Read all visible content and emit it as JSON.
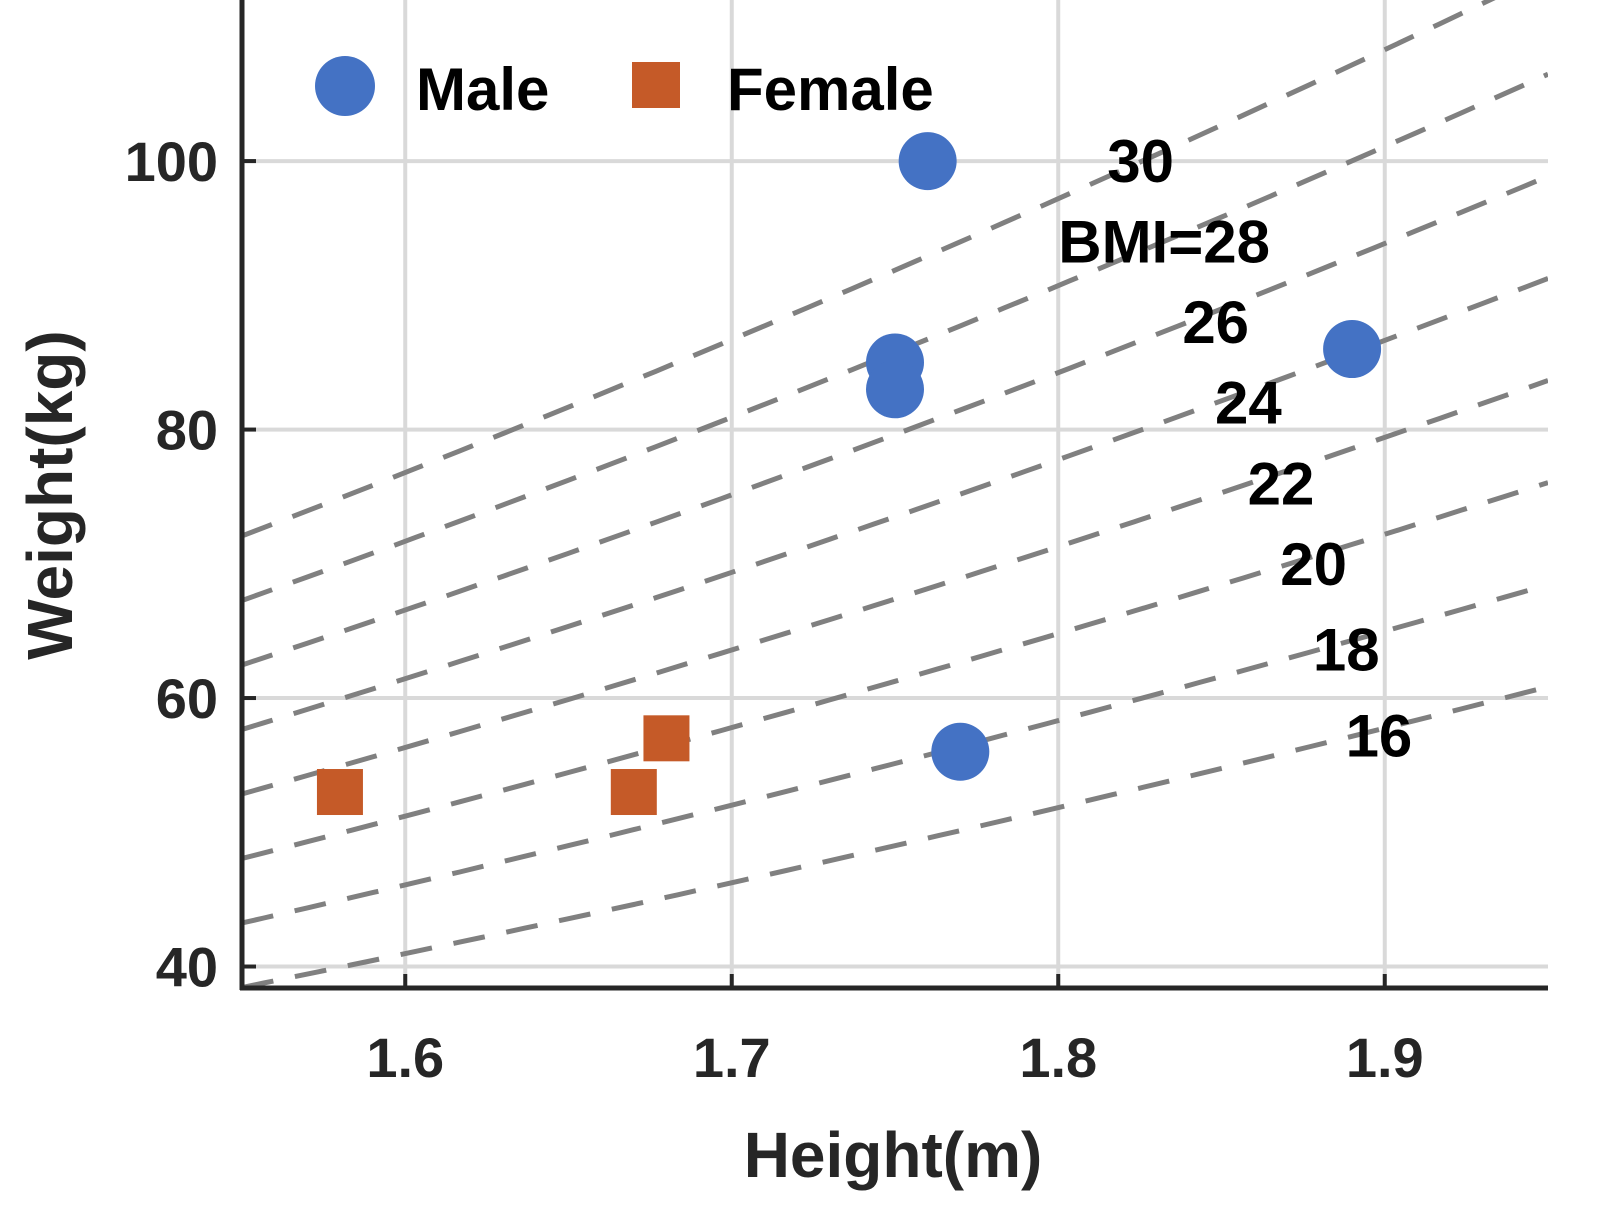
{
  "chart_data": {
    "type": "scatter",
    "xlabel": "Height(m)",
    "ylabel": "Weight(kg)",
    "xlim": [
      1.55,
      1.95
    ],
    "ylim": [
      38.4,
      112
    ],
    "x_ticks": [
      1.6,
      1.7,
      1.8,
      1.9
    ],
    "y_ticks": [
      40,
      60,
      80,
      100
    ],
    "x_tick_labels": [
      "1.6",
      "1.7",
      "1.8",
      "1.9"
    ],
    "y_tick_labels": [
      "40",
      "60",
      "80",
      "100"
    ],
    "grid": true,
    "legend": "top-left",
    "series": [
      {
        "name": "Male",
        "marker": "circle",
        "color": "#4472C4",
        "points": [
          {
            "x": 1.76,
            "y": 100
          },
          {
            "x": 1.75,
            "y": 85
          },
          {
            "x": 1.75,
            "y": 83
          },
          {
            "x": 1.89,
            "y": 86
          },
          {
            "x": 1.77,
            "y": 56
          }
        ]
      },
      {
        "name": "Female",
        "marker": "square",
        "color": "#C55A28",
        "points": [
          {
            "x": 1.58,
            "y": 53
          },
          {
            "x": 1.67,
            "y": 53
          },
          {
            "x": 1.68,
            "y": 57
          }
        ]
      }
    ],
    "bmi_lines": {
      "color": "#808080",
      "style": "dashed",
      "values": [
        16,
        18,
        20,
        22,
        24,
        26,
        28,
        30
      ],
      "labels": [
        {
          "bmi": 30,
          "text": "30",
          "x": 1.815,
          "y": 100
        },
        {
          "bmi": 28,
          "text": "BMI=28",
          "x": 1.8,
          "y": 94
        },
        {
          "bmi": 26,
          "text": "26",
          "x": 1.838,
          "y": 88
        },
        {
          "bmi": 24,
          "text": "24",
          "x": 1.848,
          "y": 82
        },
        {
          "bmi": 22,
          "text": "22",
          "x": 1.858,
          "y": 76
        },
        {
          "bmi": 20,
          "text": "20",
          "x": 1.868,
          "y": 70
        },
        {
          "bmi": 18,
          "text": "18",
          "x": 1.878,
          "y": 63.6
        },
        {
          "bmi": 16,
          "text": "16",
          "x": 1.888,
          "y": 57.2
        }
      ]
    }
  }
}
